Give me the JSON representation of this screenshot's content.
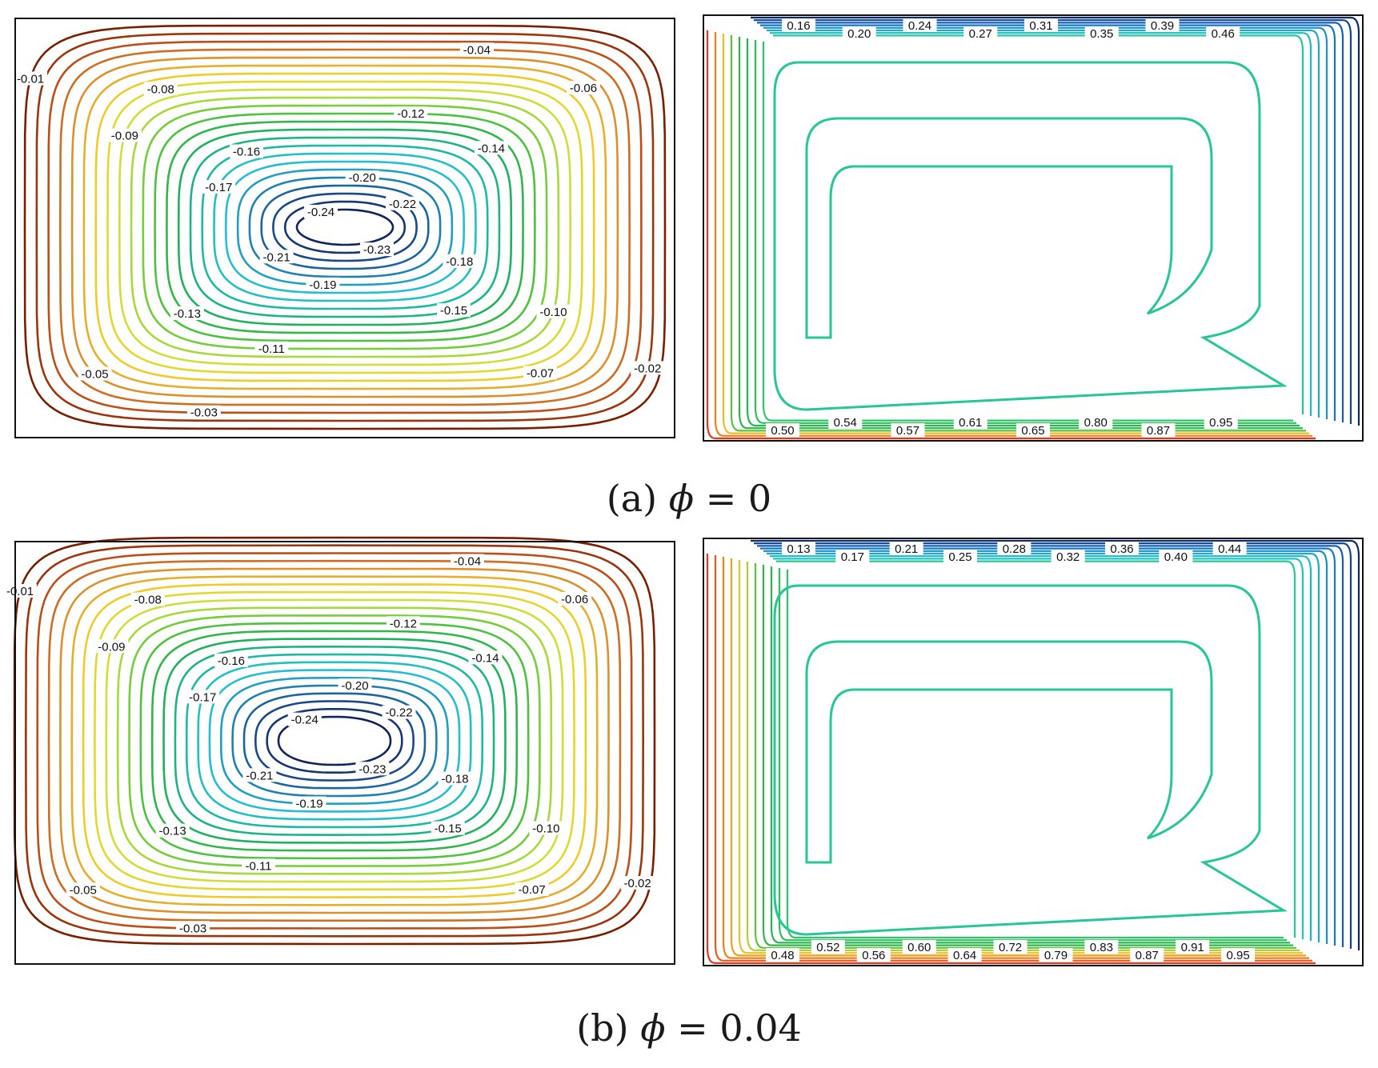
{
  "figure": {
    "captions": [
      {
        "prefix": "(a) ",
        "symbol": "ϕ",
        "rest": " = 0"
      },
      {
        "prefix": "(b) ",
        "symbol": "ϕ",
        "rest": " = 0.04"
      }
    ],
    "colors": {
      "stream_palette": [
        "#7a1e00",
        "#c0501a",
        "#e0962e",
        "#f2d42a",
        "#c8e03c",
        "#5cc93a",
        "#22b04e",
        "#1ab69a",
        "#24c6d8",
        "#1f86b4",
        "#1c4a8a",
        "#10245c"
      ],
      "iso_palette": [
        "#0a2a6a",
        "#1565c0",
        "#1aa6d0",
        "#22c4c0",
        "#2ec85a",
        "#22b04e",
        "#7fd13a",
        "#e8d22a",
        "#f08a1a",
        "#e8341c"
      ],
      "frame": "#111111"
    }
  },
  "chart_data": [
    {
      "type": "contour",
      "panel": "a-streamlines",
      "shape": "elliptic-vortex",
      "levels": [
        -0.01,
        -0.02,
        -0.03,
        -0.04,
        -0.05,
        -0.06,
        -0.07,
        -0.08,
        -0.09,
        -0.1,
        -0.11,
        -0.12,
        -0.13,
        -0.14,
        -0.15,
        -0.16,
        -0.17,
        -0.18,
        -0.19,
        -0.2,
        -0.21,
        -0.22,
        -0.23,
        -0.24
      ],
      "labels": [
        "-0.01",
        "-0.02",
        "-0.03",
        "-0.04",
        "-0.05",
        "-0.06",
        "-0.07",
        "-0.08",
        "-0.09",
        "-0.10",
        "-0.11",
        "-0.12",
        "-0.13",
        "-0.14",
        "-0.15",
        "-0.16",
        "-0.17",
        "-0.18",
        "-0.19",
        "-0.20",
        "-0.21",
        "-0.22",
        "-0.23",
        "-0.24"
      ]
    },
    {
      "type": "contour",
      "panel": "a-isotherms",
      "shape": "tongue-cell",
      "levels": [
        0.16,
        0.2,
        0.24,
        0.27,
        0.31,
        0.35,
        0.39,
        0.46,
        0.5,
        0.54,
        0.57,
        0.61,
        0.65,
        0.8,
        0.87,
        0.95
      ],
      "labels": [
        "0.16",
        "0.20",
        "0.24",
        "0.27",
        "0.31",
        "0.35",
        "0.39",
        "0.46",
        "0.50",
        "0.54",
        "0.57",
        "0.61",
        "0.65",
        "0.80",
        "0.87",
        "0.95"
      ]
    },
    {
      "type": "contour",
      "panel": "b-streamlines",
      "shape": "round-vortex",
      "levels": [
        -0.01,
        -0.02,
        -0.03,
        -0.04,
        -0.05,
        -0.06,
        -0.07,
        -0.08,
        -0.09,
        -0.1,
        -0.11,
        -0.12,
        -0.13,
        -0.14,
        -0.15,
        -0.16,
        -0.17,
        -0.18,
        -0.19,
        -0.2,
        -0.21,
        -0.22,
        -0.23,
        -0.24
      ],
      "labels": [
        "-0.01",
        "-0.02",
        "-0.03",
        "-0.04",
        "-0.05",
        "-0.06",
        "-0.07",
        "-0.08",
        "-0.09",
        "-0.10",
        "-0.11",
        "-0.12",
        "-0.13",
        "-0.14",
        "-0.15",
        "-0.16",
        "-0.17",
        "-0.18",
        "-0.19",
        "-0.20",
        "-0.21",
        "-0.22",
        "-0.23",
        "-0.24"
      ]
    },
    {
      "type": "contour",
      "panel": "b-isotherms",
      "shape": "tongue-cell",
      "levels": [
        0.13,
        0.17,
        0.21,
        0.25,
        0.28,
        0.32,
        0.36,
        0.4,
        0.44,
        0.48,
        0.52,
        0.56,
        0.6,
        0.64,
        0.72,
        0.79,
        0.83,
        0.87,
        0.91,
        0.95
      ],
      "labels": [
        "0.13",
        "0.17",
        "0.21",
        "0.25",
        "0.28",
        "0.32",
        "0.36",
        "0.40",
        "0.44",
        "0.48",
        "0.52",
        "0.56",
        "0.60",
        "0.64",
        "0.72",
        "0.79",
        "0.83",
        "0.87",
        "0.91",
        "0.95"
      ]
    }
  ]
}
